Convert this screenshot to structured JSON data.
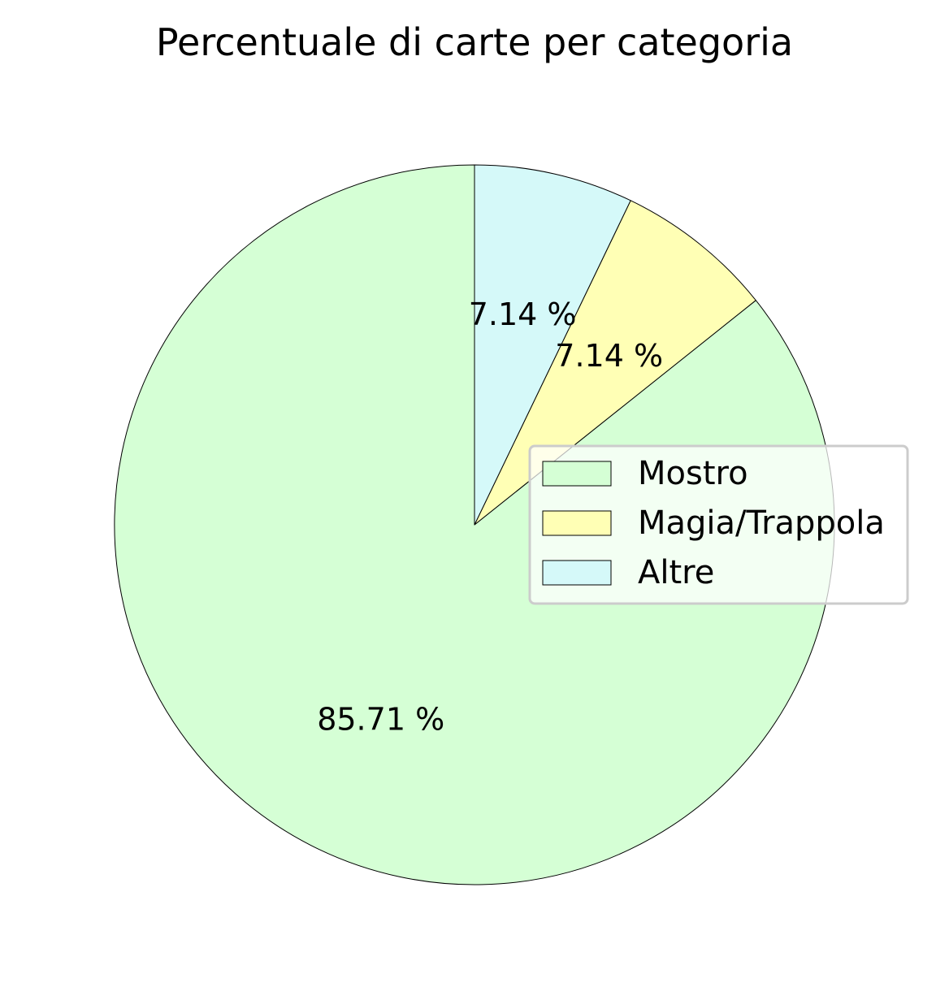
{
  "chart_data": {
    "type": "pie",
    "title": "Percentuale di carte per categoria",
    "start_angle_deg": 90,
    "direction": "counterclockwise",
    "slices": [
      {
        "label": "Mostro",
        "value": 85.71,
        "pct_label": "85.71 %",
        "color": "#d5ffd5"
      },
      {
        "label": "Magia/Trappola",
        "value": 7.14,
        "pct_label": "7.14 %",
        "color": "#ffffb5"
      },
      {
        "label": "Altre",
        "value": 7.14,
        "pct_label": "7.14 %",
        "color": "#d5f9f9"
      }
    ],
    "legend": {
      "placement": "center-right",
      "entries": [
        "Mostro",
        "Magia/Trappola",
        "Altre"
      ]
    }
  }
}
